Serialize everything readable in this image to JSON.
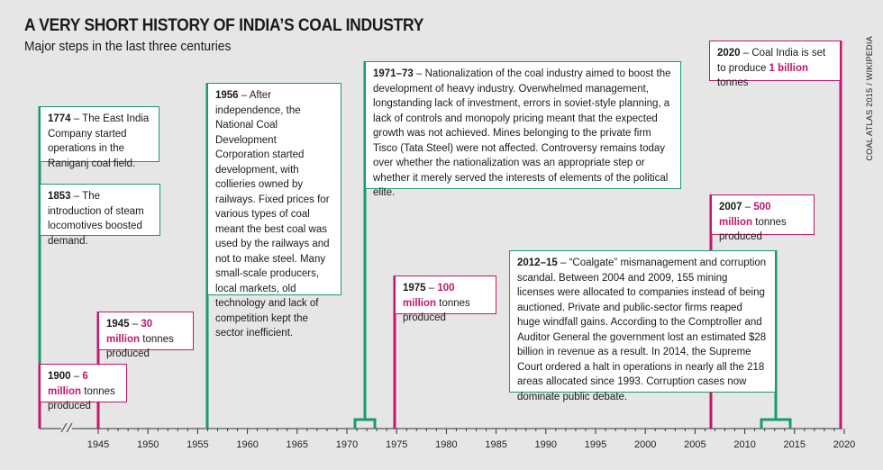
{
  "header": {
    "title": "A VERY SHORT HISTORY OF INDIA’S COAL INDUSTRY",
    "subtitle": "Major steps in the last three centuries",
    "credit": "COAL ATLAS 2015 / WIKIPEDIA"
  },
  "colors": {
    "green": "#1a9a6c",
    "pink": "#c4156f",
    "axis": "#333333"
  },
  "axis": {
    "ticks": [
      "1945",
      "1950",
      "1955",
      "1960",
      "1965",
      "1970",
      "1975",
      "1980",
      "1985",
      "1990",
      "1995",
      "2000",
      "2005",
      "2010",
      "2015",
      "2020"
    ]
  },
  "events": {
    "e1774": {
      "year": "1774",
      "text": " – The East India Company started operations in the Raniganj coal field."
    },
    "e1853": {
      "year": "1853",
      "text": " – The introduction of steam locomotives boosted demand."
    },
    "e1900": {
      "year": "1900",
      "dash": " – ",
      "value": "6 million",
      "text": " tonnes produced"
    },
    "e1945": {
      "year": "1945",
      "dash": " – ",
      "value": "30 million",
      "text": " tonnes produced"
    },
    "e1956": {
      "year": "1956",
      "text": " – After independence, the National Coal Development Corporation started development, with collieries owned by railways. Fixed prices for various types of coal meant the best coal was used by the railways and not to make steel. Many small-scale producers, local markets, old technology and lack of competition kept the sector inefficient."
    },
    "e1971": {
      "year": "1971–73",
      "text": " – Nationalization of the coal industry aimed to boost the development of heavy industry. Overwhelmed management, longstanding lack of investment, errors in soviet-style planning, a lack of controls and monopoly pricing meant that the expected growth was not achieved. Mines belonging to the private firm Tisco (Tata Steel) were not affected. Controversy remains today over whether the nationalization was an appropriate step or whether it merely served the interests of elements of the political elite."
    },
    "e1975": {
      "year": "1975",
      "dash": " – ",
      "value": "100 million",
      "text": " tonnes produced"
    },
    "e2007": {
      "year": "2007",
      "dash": " – ",
      "value": "500 million",
      "text": " tonnes produced"
    },
    "e2012": {
      "year": "2012–15",
      "text": " – “Coalgate” mismanagement and corruption scandal. Between 2004 and 2009, 155 mining licenses were allocated to companies instead of being auctioned. Private and public-sector firms reaped huge windfall gains. According to the Comptroller and Auditor General the government lost an estimated $28 billion in revenue as a result. In 2014, the Supreme Court ordered a halt in operations in nearly all the 218 areas allocated since 1993. Corruption cases now dominate public debate."
    },
    "e2020": {
      "year": "2020",
      "text": " – Coal India is set to produce ",
      "value": "1 billion",
      "tail": " tonnes"
    }
  }
}
